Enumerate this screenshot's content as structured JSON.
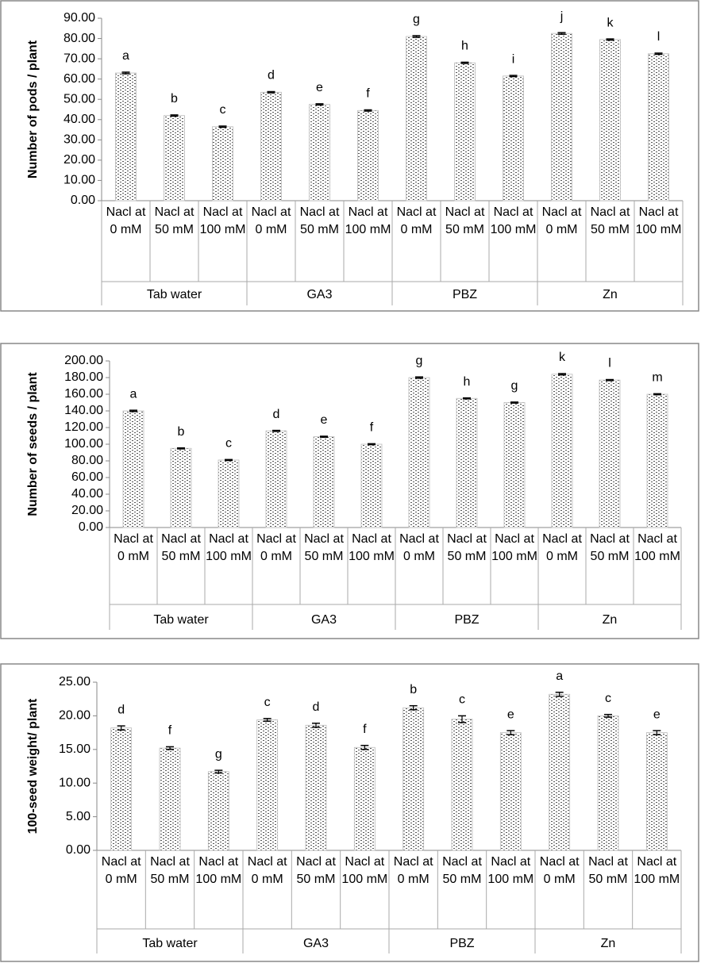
{
  "chart_data": [
    {
      "type": "bar",
      "y_label": "Number of pods / plant",
      "groups": [
        "Tab water",
        "GA3",
        "PBZ",
        "Zn"
      ],
      "categories": [
        "Nacl at 0 mM",
        "Nacl at 50 mM",
        "Nacl at 100 mM",
        "Nacl at 0 mM",
        "Nacl at 50 mM",
        "Nacl at 100 mM",
        "Nacl at 0 mM",
        "Nacl at 50 mM",
        "Nacl at 100 mM",
        "Nacl at 0 mM",
        "Nacl at 50 mM",
        "Nacl at 100 mM"
      ],
      "values": [
        63,
        42,
        36.5,
        53.5,
        47.5,
        44.5,
        81,
        68,
        61.5,
        82.5,
        79.5,
        72.5
      ],
      "errors": [
        0.4,
        0.3,
        0.3,
        0.3,
        0.3,
        0.3,
        0.4,
        0.3,
        0.3,
        0.4,
        0.3,
        0.3
      ],
      "letters": [
        "a",
        "b",
        "c",
        "d",
        "e",
        "f",
        "g",
        "h",
        "i",
        "j",
        "k",
        "l"
      ],
      "ylim": [
        0,
        90
      ],
      "yticks": [
        {
          "value": 0,
          "label": "0.00"
        },
        {
          "value": 10,
          "label": "10.00"
        },
        {
          "value": 20,
          "label": "20.00"
        },
        {
          "value": 30,
          "label": "30.00"
        },
        {
          "value": 40,
          "label": "40.00"
        },
        {
          "value": 50,
          "label": "50.00"
        },
        {
          "value": 60,
          "label": "60.00"
        },
        {
          "value": 70,
          "label": "70.00"
        },
        {
          "value": 80,
          "label": "80.00"
        },
        {
          "value": 90,
          "label": "90.00"
        }
      ]
    },
    {
      "type": "bar",
      "y_label": "Number of seeds / plant",
      "groups": [
        "Tab water",
        "GA3",
        "PBZ",
        "Zn"
      ],
      "categories": [
        "Nacl at 0 mM",
        "Nacl at 50 mM",
        "Nacl at 100 mM",
        "Nacl at 0 mM",
        "Nacl at 50 mM",
        "Nacl at 100 mM",
        "Nacl at 0 mM",
        "Nacl at 50 mM",
        "Nacl at 100 mM",
        "Nacl at 0 mM",
        "Nacl at 50 mM",
        "Nacl at 100 mM"
      ],
      "values": [
        140,
        95,
        81,
        116,
        109,
        100,
        180,
        155,
        150,
        184,
        177,
        160
      ],
      "errors": [
        0.8,
        0.6,
        0.6,
        0.6,
        0.6,
        0.6,
        0.8,
        0.6,
        0.6,
        0.8,
        0.6,
        0.6
      ],
      "letters": [
        "a",
        "b",
        "c",
        "d",
        "e",
        "f",
        "g",
        "h",
        "g",
        "k",
        "l",
        "m"
      ],
      "ylim": [
        0,
        200
      ],
      "yticks": [
        {
          "value": 0,
          "label": "0.00"
        },
        {
          "value": 20,
          "label": "20.00"
        },
        {
          "value": 40,
          "label": "40.00"
        },
        {
          "value": 60,
          "label": "60.00"
        },
        {
          "value": 80,
          "label": "80.00"
        },
        {
          "value": 100,
          "label": "100.00"
        },
        {
          "value": 120,
          "label": "120.00"
        },
        {
          "value": 140,
          "label": "140.00"
        },
        {
          "value": 160,
          "label": "160.00"
        },
        {
          "value": 180,
          "label": "180.00"
        },
        {
          "value": 200,
          "label": "200.00"
        }
      ]
    },
    {
      "type": "bar",
      "y_label": "100-seed weight/ plant",
      "groups": [
        "Tab water",
        "GA3",
        "PBZ",
        "Zn"
      ],
      "categories": [
        "Nacl at 0 mM",
        "Nacl at 50 mM",
        "Nacl at 100 mM",
        "Nacl at 0 mM",
        "Nacl at 50 mM",
        "Nacl at 100 mM",
        "Nacl at 0 mM",
        "Nacl at 50 mM",
        "Nacl at 100 mM",
        "Nacl at 0 mM",
        "Nacl at 50 mM",
        "Nacl at 100 mM"
      ],
      "values": [
        18.2,
        15.2,
        11.7,
        19.4,
        18.6,
        15.3,
        21.2,
        19.5,
        17.5,
        23.2,
        20.0,
        17.5
      ],
      "errors": [
        0.3,
        0.2,
        0.2,
        0.2,
        0.3,
        0.3,
        0.3,
        0.5,
        0.3,
        0.3,
        0.2,
        0.3
      ],
      "letters": [
        "d",
        "f",
        "g",
        "c",
        "d",
        "f",
        "b",
        "c",
        "e",
        "a",
        "c",
        "e"
      ],
      "ylim": [
        0,
        25
      ],
      "yticks": [
        {
          "value": 0,
          "label": "0.00"
        },
        {
          "value": 5,
          "label": "5.00"
        },
        {
          "value": 10,
          "label": "10.00"
        },
        {
          "value": 15,
          "label": "15.00"
        },
        {
          "value": 20,
          "label": "20.00"
        },
        {
          "value": 25,
          "label": "25.00"
        }
      ]
    }
  ]
}
